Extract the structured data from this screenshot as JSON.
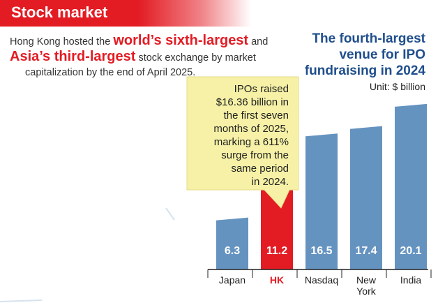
{
  "header": {
    "title": "Stock market"
  },
  "intro": {
    "pre": "Hong Kong hosted the ",
    "highlight1": "world’s sixth-largest",
    "mid": " and",
    "highlight2": "Asia’s third-largest",
    "post1": " stock exchange by market",
    "post2": "capitalization by the end of April 2025."
  },
  "callout": {
    "lines": [
      "IPOs raised",
      "$16.36 billion in",
      "the first seven",
      "months of 2025,",
      "marking a 611%",
      "surge from the",
      "same period",
      "in 2024."
    ]
  },
  "chart_data": {
    "type": "bar",
    "title": "The fourth-largest venue for IPO fundraising in 2024",
    "title_lines": [
      "The fourth-largest",
      "venue for IPO",
      "fundraising in 2024"
    ],
    "unit": "Unit: $ billion",
    "categories": [
      "Japan",
      "HK",
      "Nasdaq",
      "New York",
      "India"
    ],
    "category_lines": [
      [
        "Japan"
      ],
      [
        "HK"
      ],
      [
        "Nasdaq"
      ],
      [
        "New",
        "York"
      ],
      [
        "India"
      ]
    ],
    "values": [
      6.3,
      11.2,
      16.5,
      17.4,
      20.1
    ],
    "labels": [
      "6.3",
      "11.2",
      "16.5",
      "17.4",
      "20.1"
    ],
    "highlight": "HK",
    "colors": {
      "bar": "#6593c0",
      "highlight": "#e31b23",
      "callout_bg": "#f6f1a6",
      "label": "#ffffff"
    },
    "grid": false
  }
}
